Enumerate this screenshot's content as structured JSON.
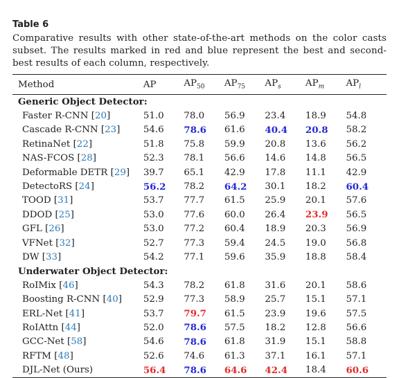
{
  "table_label": "Table 6",
  "caption": "Comparative results with other state-of-the-art methods on the color casts subset. The results marked in red and blue represent the best and second-best results of each column, respectively.",
  "headers": {
    "method": "Method",
    "ap": "AP",
    "ap50": [
      "AP",
      "50"
    ],
    "ap75": [
      "AP",
      "75"
    ],
    "aps": [
      "AP",
      "s"
    ],
    "apm": [
      "AP",
      "m"
    ],
    "apl": [
      "AP",
      "l"
    ]
  },
  "sections": [
    {
      "title": "Generic Object Detector:",
      "rows": [
        {
          "name": "Faster R-CNN",
          "ref": "20",
          "vals": [
            "51.0",
            "78.0",
            "56.9",
            "23.4",
            "18.9",
            "54.8"
          ],
          "marks": [
            "",
            "",
            "",
            "",
            "",
            ""
          ]
        },
        {
          "name": "Cascade R-CNN",
          "ref": "23",
          "vals": [
            "54.6",
            "78.6",
            "61.6",
            "40.4",
            "20.8",
            "58.2"
          ],
          "marks": [
            "",
            "second",
            "",
            "second",
            "second",
            ""
          ]
        },
        {
          "name": "RetinaNet",
          "ref": "22",
          "vals": [
            "51.8",
            "75.8",
            "59.9",
            "20.8",
            "13.6",
            "56.2"
          ],
          "marks": [
            "",
            "",
            "",
            "",
            "",
            ""
          ]
        },
        {
          "name": "NAS-FCOS",
          "ref": "28",
          "vals": [
            "52.3",
            "78.1",
            "56.6",
            "14.6",
            "14.8",
            "56.5"
          ],
          "marks": [
            "",
            "",
            "",
            "",
            "",
            ""
          ]
        },
        {
          "name": "Deformable DETR",
          "ref": "29",
          "vals": [
            "39.7",
            "65.1",
            "42.9",
            "17.8",
            "11.1",
            "42.9"
          ],
          "marks": [
            "",
            "",
            "",
            "",
            "",
            ""
          ]
        },
        {
          "name": "DetectoRS",
          "ref": "24",
          "vals": [
            "56.2",
            "78.2",
            "64.2",
            "30.1",
            "18.2",
            "60.4"
          ],
          "marks": [
            "second",
            "",
            "second",
            "",
            "",
            "second"
          ]
        },
        {
          "name": "TOOD",
          "ref": "31",
          "vals": [
            "53.7",
            "77.7",
            "61.5",
            "25.9",
            "20.1",
            "57.6"
          ],
          "marks": [
            "",
            "",
            "",
            "",
            "",
            ""
          ]
        },
        {
          "name": "DDOD",
          "ref": "25",
          "vals": [
            "53.0",
            "77.6",
            "60.0",
            "26.4",
            "23.9",
            "56.5"
          ],
          "marks": [
            "",
            "",
            "",
            "",
            "best",
            ""
          ]
        },
        {
          "name": "GFL",
          "ref": "26",
          "vals": [
            "53.0",
            "77.2",
            "60.4",
            "18.9",
            "20.3",
            "56.9"
          ],
          "marks": [
            "",
            "",
            "",
            "",
            "",
            ""
          ]
        },
        {
          "name": "VFNet",
          "ref": "32",
          "vals": [
            "52.7",
            "77.3",
            "59.4",
            "24.5",
            "19.0",
            "56.8"
          ],
          "marks": [
            "",
            "",
            "",
            "",
            "",
            ""
          ]
        },
        {
          "name": "DW",
          "ref": "33",
          "vals": [
            "54.2",
            "77.1",
            "59.6",
            "35.9",
            "18.8",
            "58.4"
          ],
          "marks": [
            "",
            "",
            "",
            "",
            "",
            ""
          ]
        }
      ]
    },
    {
      "title": "Underwater Object Detector:",
      "rows": [
        {
          "name": "RoIMix",
          "ref": "46",
          "vals": [
            "54.3",
            "78.2",
            "61.8",
            "31.6",
            "20.1",
            "58.6"
          ],
          "marks": [
            "",
            "",
            "",
            "",
            "",
            ""
          ]
        },
        {
          "name": "Boosting R-CNN",
          "ref": "40",
          "vals": [
            "52.9",
            "77.3",
            "58.9",
            "25.7",
            "15.1",
            "57.1"
          ],
          "marks": [
            "",
            "",
            "",
            "",
            "",
            ""
          ]
        },
        {
          "name": "ERL-Net",
          "ref": "41",
          "vals": [
            "53.7",
            "79.7",
            "61.5",
            "23.9",
            "19.6",
            "57.5"
          ],
          "marks": [
            "",
            "best",
            "",
            "",
            "",
            ""
          ]
        },
        {
          "name": "RoIAttn",
          "ref": "44",
          "vals": [
            "52.0",
            "78.6",
            "57.5",
            "18.2",
            "12.8",
            "56.6"
          ],
          "marks": [
            "",
            "second",
            "",
            "",
            "",
            ""
          ]
        },
        {
          "name": "GCC-Net",
          "ref": "58",
          "vals": [
            "54.6",
            "78.6",
            "61.8",
            "31.9",
            "15.1",
            "58.8"
          ],
          "marks": [
            "",
            "second",
            "",
            "",
            "",
            ""
          ]
        },
        {
          "name": "RFTM",
          "ref": "48",
          "vals": [
            "52.6",
            "74.6",
            "61.3",
            "37.1",
            "16.1",
            "57.1"
          ],
          "marks": [
            "",
            "",
            "",
            "",
            "",
            ""
          ]
        },
        {
          "name": "DJL-Net (Ours)",
          "ref": "",
          "vals": [
            "56.4",
            "78.6",
            "64.6",
            "42.4",
            "18.4",
            "60.6"
          ],
          "marks": [
            "best",
            "second",
            "best",
            "best",
            "",
            "best"
          ]
        }
      ]
    }
  ]
}
